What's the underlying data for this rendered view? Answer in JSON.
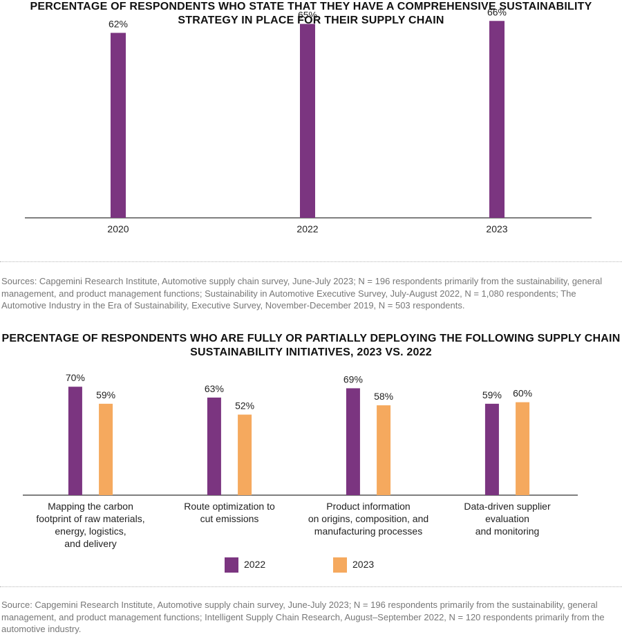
{
  "chart_data": [
    {
      "type": "bar",
      "title": "PERCENTAGE OF RESPONDENTS WHO STATE THAT THEY HAVE A COMPREHENSIVE SUSTAINABILITY STRATEGY IN PLACE FOR THEIR SUPPLY CHAIN",
      "categories": [
        "2020",
        "2022",
        "2023"
      ],
      "values": [
        62,
        65,
        66
      ],
      "value_labels": [
        "62%",
        "65%",
        "66%"
      ],
      "ylim": [
        0,
        70
      ],
      "grid": false,
      "color": "#7b3580"
    },
    {
      "type": "bar",
      "title": "PERCENTAGE OF RESPONDENTS WHO ARE FULLY OR PARTIALLY DEPLOYING THE FOLLOWING SUPPLY CHAIN SUSTAINABILITY INITIATIVES, 2023 VS. 2022",
      "categories": [
        [
          "Mapping the carbon",
          "footprint of raw materials,",
          "energy, logistics,",
          "and delivery"
        ],
        [
          "Route optimization to",
          "cut emissions"
        ],
        [
          "Product information",
          "on origins, composition, and",
          "manufacturing processes"
        ],
        [
          "Data-driven supplier",
          "evaluation",
          "and monitoring"
        ]
      ],
      "series": [
        {
          "name": "2022",
          "values": [
            70,
            63,
            69,
            59
          ],
          "labels": [
            "70%",
            "63%",
            "69%",
            "59%"
          ],
          "color": "#7b3580"
        },
        {
          "name": "2023",
          "values": [
            59,
            52,
            58,
            60
          ],
          "labels": [
            "59%",
            "52%",
            "58%",
            "60%"
          ],
          "color": "#f5a95e"
        }
      ],
      "ylim": [
        0,
        75
      ],
      "grid": false,
      "legend_position": "bottom"
    }
  ],
  "sources": {
    "top": "Sources: Capgemini Research Institute, Automotive supply chain survey, June-July 2023; N = 196 respondents primarily from the sustainability, general management, and product management functions; Sustainability in Automotive Executive Survey, July-August 2022, N = 1,080 respondents; The Automotive Industry in the Era of Sustainability, Executive Survey, November-December 2019, N = 503 respondents.",
    "bottom": "Source: Capgemini Research Institute, Automotive supply chain survey, June-July 2023; N = 196 respondents primarily from the sustainability, general management, and product management functions; Intelligent Supply Chain Research, August–September 2022, N = 120 respondents primarily from the automotive industry."
  }
}
